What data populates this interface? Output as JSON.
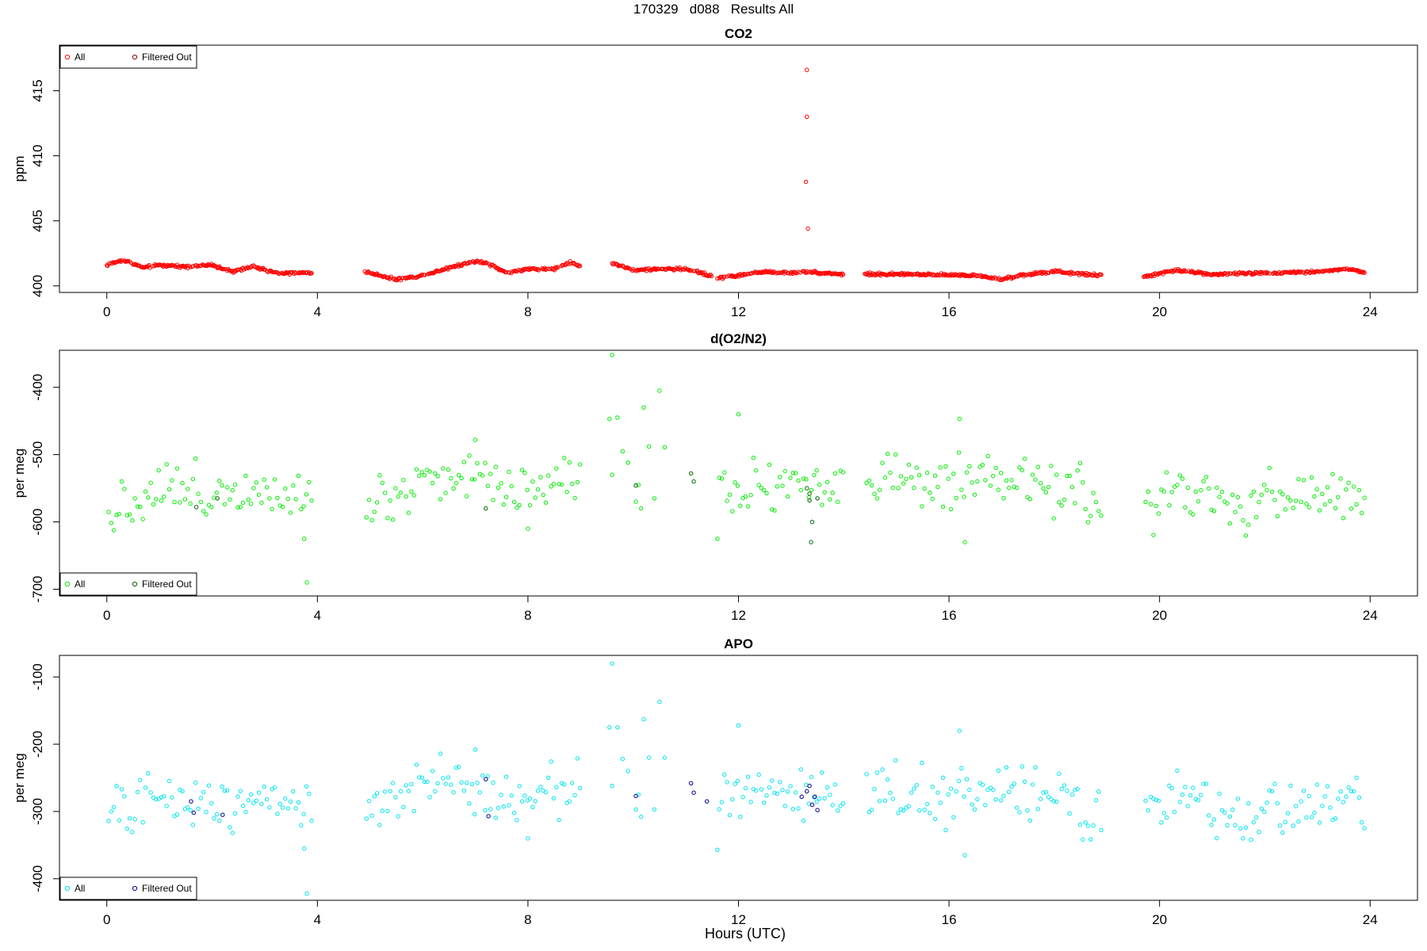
{
  "page_title": "170329   d088   Results All",
  "xlabel": "Hours (UTC)",
  "chart_data": [
    {
      "type": "scatter",
      "title": "CO2",
      "xlabel": "Hours (UTC)",
      "ylabel": "ppm",
      "xlim": [
        -0.9,
        24.9
      ],
      "ylim": [
        399.5,
        418.5
      ],
      "xticks": [
        "0",
        "4",
        "8",
        "12",
        "16",
        "20",
        "24"
      ],
      "yticks": [
        "400",
        "405",
        "410",
        "415"
      ],
      "legend": {
        "position": "top-left",
        "entries": [
          "All",
          "Filtered Out"
        ]
      },
      "series_colors": {
        "all": "#ff0000",
        "filtered": "#8b0000"
      },
      "segments": [
        [
          0,
          3.9
        ],
        [
          4.9,
          6.4
        ],
        [
          6.4,
          9.0
        ],
        [
          9.6,
          11.5
        ],
        [
          11.6,
          14.0
        ],
        [
          14.4,
          18.9
        ],
        [
          19.7,
          23.9
        ]
      ],
      "anchors": [
        [
          0,
          401.6
        ],
        [
          0.3,
          402.0
        ],
        [
          0.7,
          401.4
        ],
        [
          1.0,
          401.6
        ],
        [
          1.5,
          401.5
        ],
        [
          2.0,
          401.6
        ],
        [
          2.4,
          401.1
        ],
        [
          2.8,
          401.5
        ],
        [
          3.2,
          401.0
        ],
        [
          3.9,
          401.0
        ],
        [
          4.9,
          401.1
        ],
        [
          5.5,
          400.5
        ],
        [
          6.0,
          400.8
        ],
        [
          6.4,
          401.3
        ],
        [
          6.6,
          401.5
        ],
        [
          7.0,
          401.9
        ],
        [
          7.2,
          401.8
        ],
        [
          7.6,
          401.0
        ],
        [
          8.0,
          401.3
        ],
        [
          8.5,
          401.3
        ],
        [
          8.8,
          401.8
        ],
        [
          9.0,
          401.5
        ],
        [
          9.6,
          401.8
        ],
        [
          10.0,
          401.2
        ],
        [
          10.5,
          401.3
        ],
        [
          11.0,
          401.3
        ],
        [
          11.3,
          401.0
        ],
        [
          11.6,
          400.6
        ],
        [
          12.0,
          400.8
        ],
        [
          12.5,
          401.1
        ],
        [
          13.0,
          401.0
        ],
        [
          13.3,
          401.1
        ],
        [
          13.6,
          401.0
        ],
        [
          14.0,
          400.9
        ],
        [
          14.4,
          400.9
        ],
        [
          15.5,
          400.9
        ],
        [
          16.5,
          400.8
        ],
        [
          17.0,
          400.5
        ],
        [
          17.5,
          400.9
        ],
        [
          18.0,
          401.1
        ],
        [
          18.9,
          400.8
        ],
        [
          19.7,
          400.7
        ],
        [
          20.3,
          401.2
        ],
        [
          21.0,
          400.9
        ],
        [
          22.0,
          401.0
        ],
        [
          23.0,
          401.1
        ],
        [
          23.6,
          401.3
        ],
        [
          23.9,
          401.0
        ]
      ],
      "noise": 0.05,
      "outliers": [
        [
          13.3,
          416.6
        ],
        [
          13.3,
          413.0
        ],
        [
          13.28,
          408.0
        ],
        [
          13.32,
          404.4
        ]
      ],
      "filtered_points": []
    },
    {
      "type": "scatter",
      "title": "d(O2/N2)",
      "xlabel": "Hours (UTC)",
      "ylabel": "per meg",
      "xlim": [
        -0.9,
        24.9
      ],
      "ylim": [
        -710,
        -345
      ],
      "xticks": [
        "0",
        "4",
        "8",
        "12",
        "16",
        "20",
        "24"
      ],
      "yticks": [
        "-700",
        "-600",
        "-500",
        "-400"
      ],
      "legend": {
        "position": "bottom-left",
        "entries": [
          "All",
          "Filtered Out"
        ]
      },
      "series_colors": {
        "all": "#00ee00",
        "filtered": "#006400"
      },
      "segments": [
        [
          0,
          3.9
        ],
        [
          4.9,
          9.0
        ],
        [
          11.6,
          14.0
        ],
        [
          14.4,
          18.9
        ],
        [
          19.7,
          23.9
        ]
      ],
      "anchors": [
        [
          0,
          -585
        ],
        [
          0.5,
          -570
        ],
        [
          1.0,
          -545
        ],
        [
          1.8,
          -560
        ],
        [
          2.5,
          -550
        ],
        [
          3.0,
          -545
        ],
        [
          3.9,
          -560
        ],
        [
          4.9,
          -570
        ],
        [
          5.5,
          -560
        ],
        [
          6.0,
          -530
        ],
        [
          7.0,
          -535
        ],
        [
          7.5,
          -540
        ],
        [
          8.0,
          -550
        ],
        [
          8.5,
          -540
        ],
        [
          9.0,
          -520
        ],
        [
          11.6,
          -555
        ],
        [
          12.0,
          -545
        ],
        [
          13.0,
          -540
        ],
        [
          14.0,
          -550
        ],
        [
          14.4,
          -535
        ],
        [
          15.5,
          -545
        ],
        [
          16.5,
          -550
        ],
        [
          17.0,
          -545
        ],
        [
          17.5,
          -540
        ],
        [
          18.0,
          -545
        ],
        [
          18.9,
          -580
        ],
        [
          19.7,
          -575
        ],
        [
          20.5,
          -555
        ],
        [
          21.0,
          -570
        ],
        [
          21.5,
          -590
        ],
        [
          22.0,
          -565
        ],
        [
          23.0,
          -560
        ],
        [
          23.9,
          -560
        ]
      ],
      "noise": 20,
      "outliers": [
        [
          9.6,
          -352
        ],
        [
          9.55,
          -447
        ],
        [
          9.7,
          -445
        ],
        [
          10.2,
          -430
        ],
        [
          10.5,
          -405
        ],
        [
          9.8,
          -495
        ],
        [
          9.6,
          -530
        ],
        [
          9.9,
          -512
        ],
        [
          10.1,
          -545
        ],
        [
          10.3,
          -488
        ],
        [
          10.6,
          -489
        ],
        [
          10.4,
          -565
        ],
        [
          10.05,
          -570
        ],
        [
          10.15,
          -580
        ],
        [
          12.0,
          -440
        ],
        [
          16.2,
          -447
        ],
        [
          3.75,
          -625
        ],
        [
          3.8,
          -690
        ],
        [
          7.0,
          -478
        ],
        [
          8.0,
          -610
        ],
        [
          16.3,
          -630
        ],
        [
          11.6,
          -625
        ]
      ],
      "filtered_points": [
        [
          1.7,
          -578
        ],
        [
          2.1,
          -565
        ],
        [
          7.2,
          -580
        ],
        [
          10.05,
          -546
        ],
        [
          11.1,
          -528
        ],
        [
          11.15,
          -540
        ],
        [
          13.3,
          -550
        ],
        [
          13.35,
          -558
        ],
        [
          13.35,
          -568
        ],
        [
          13.4,
          -600
        ],
        [
          13.38,
          -630
        ],
        [
          13.5,
          -565
        ]
      ]
    },
    {
      "type": "scatter",
      "title": "APO",
      "xlabel": "Hours (UTC)",
      "ylabel": "per meg",
      "xlim": [
        -0.9,
        24.9
      ],
      "ylim": [
        -432,
        -68
      ],
      "xticks": [
        "0",
        "4",
        "8",
        "12",
        "16",
        "20",
        "24"
      ],
      "yticks": [
        "-400",
        "-300",
        "-200",
        "-100"
      ],
      "legend": {
        "position": "bottom-left",
        "entries": [
          "All",
          "Filtered Out"
        ]
      },
      "series_colors": {
        "all": "#00e5ee",
        "filtered": "#00008b"
      },
      "segments": [
        [
          0,
          3.9
        ],
        [
          4.9,
          9.0
        ],
        [
          11.6,
          14.0
        ],
        [
          14.4,
          18.9
        ],
        [
          19.7,
          23.9
        ]
      ],
      "anchors": [
        [
          0,
          -305
        ],
        [
          0.5,
          -300
        ],
        [
          1.0,
          -275
        ],
        [
          1.8,
          -290
        ],
        [
          2.5,
          -280
        ],
        [
          3.0,
          -275
        ],
        [
          3.9,
          -290
        ],
        [
          4.9,
          -300
        ],
        [
          5.5,
          -290
        ],
        [
          6.0,
          -262
        ],
        [
          7.0,
          -265
        ],
        [
          7.5,
          -270
        ],
        [
          8.0,
          -280
        ],
        [
          8.5,
          -270
        ],
        [
          9.0,
          -250
        ],
        [
          11.6,
          -285
        ],
        [
          12.0,
          -275
        ],
        [
          13.0,
          -270
        ],
        [
          14.0,
          -280
        ],
        [
          14.4,
          -265
        ],
        [
          15.5,
          -275
        ],
        [
          16.5,
          -280
        ],
        [
          17.0,
          -275
        ],
        [
          17.5,
          -270
        ],
        [
          18.0,
          -275
        ],
        [
          18.9,
          -310
        ],
        [
          19.7,
          -305
        ],
        [
          20.5,
          -285
        ],
        [
          21.0,
          -300
        ],
        [
          21.5,
          -320
        ],
        [
          22.0,
          -295
        ],
        [
          23.0,
          -290
        ],
        [
          23.9,
          -290
        ]
      ],
      "noise": 20,
      "outliers": [
        [
          9.6,
          -80
        ],
        [
          9.55,
          -175
        ],
        [
          9.7,
          -175
        ],
        [
          10.2,
          -163
        ],
        [
          10.5,
          -137
        ],
        [
          9.8,
          -222
        ],
        [
          9.6,
          -262
        ],
        [
          9.9,
          -240
        ],
        [
          10.1,
          -275
        ],
        [
          10.3,
          -220
        ],
        [
          10.6,
          -220
        ],
        [
          10.4,
          -297
        ],
        [
          10.05,
          -297
        ],
        [
          10.15,
          -308
        ],
        [
          12.0,
          -172
        ],
        [
          16.2,
          -180
        ],
        [
          3.75,
          -355
        ],
        [
          3.8,
          -422
        ],
        [
          7.0,
          -208
        ],
        [
          8.0,
          -340
        ],
        [
          16.3,
          -365
        ],
        [
          11.6,
          -357
        ]
      ],
      "filtered_points": [
        [
          1.6,
          -285
        ],
        [
          1.65,
          -302
        ],
        [
          2.2,
          -305
        ],
        [
          7.2,
          -252
        ],
        [
          7.25,
          -307
        ],
        [
          10.05,
          -277
        ],
        [
          11.1,
          -258
        ],
        [
          11.15,
          -272
        ],
        [
          11.4,
          -285
        ],
        [
          13.3,
          -270
        ],
        [
          13.35,
          -262
        ],
        [
          13.4,
          -290
        ],
        [
          13.2,
          -278
        ],
        [
          13.45,
          -278
        ],
        [
          13.5,
          -298
        ]
      ]
    }
  ]
}
